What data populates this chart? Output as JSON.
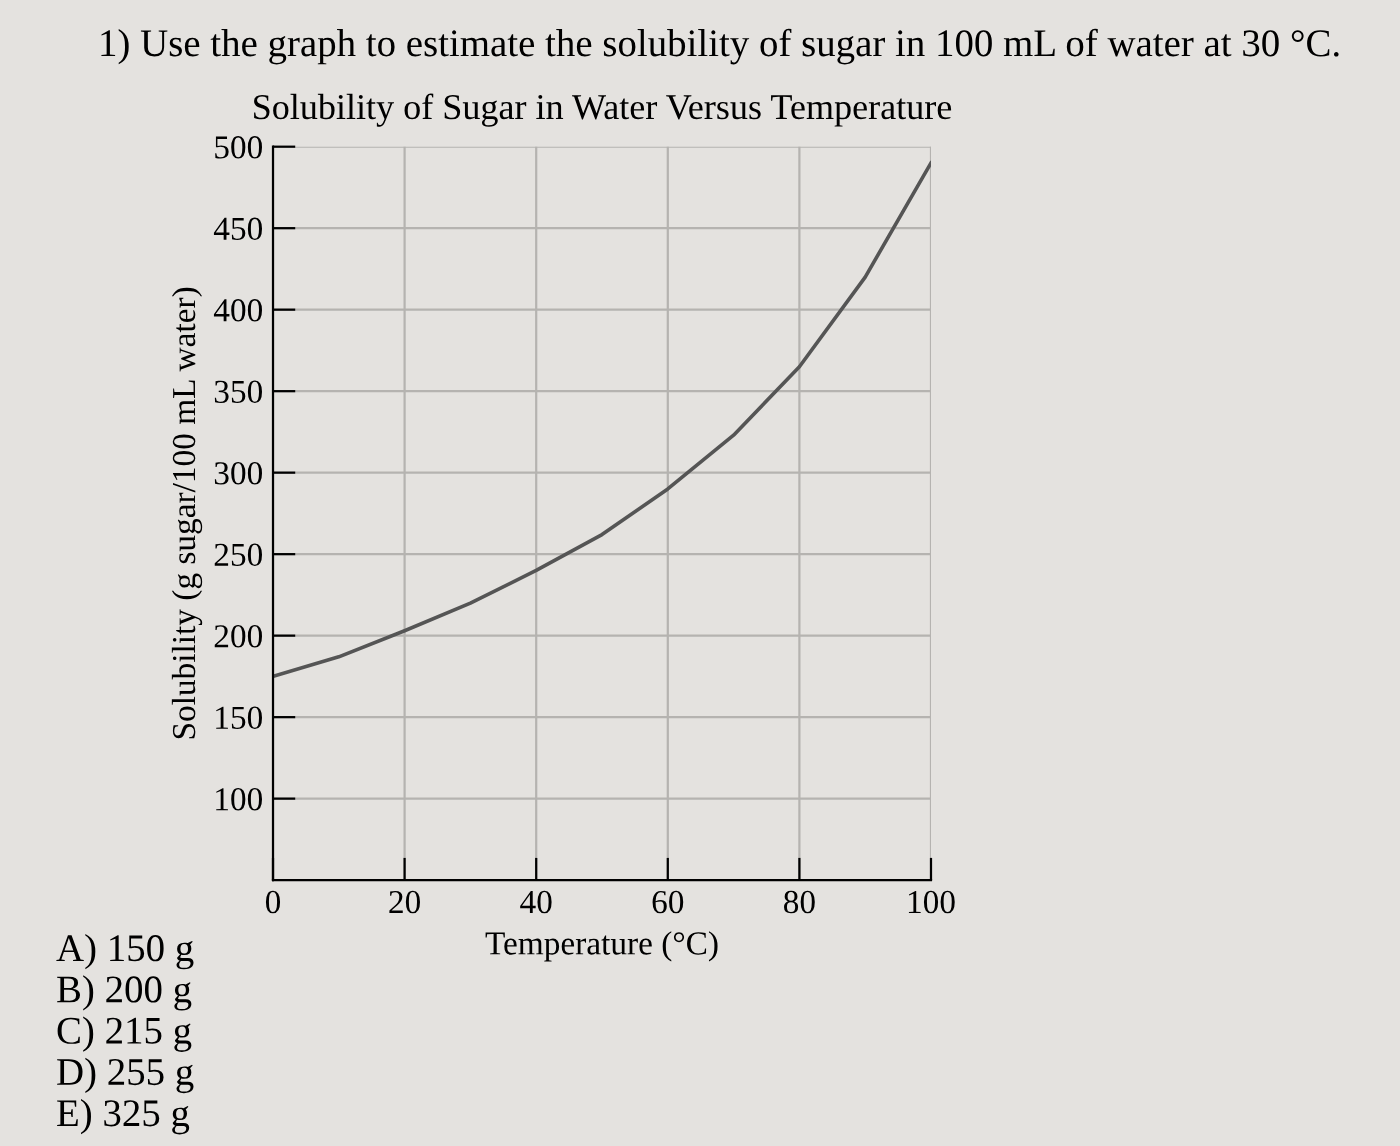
{
  "chart_data": {
    "type": "line",
    "title": "Solubility of Sugar in Water Versus Temperature",
    "xlabel": "Temperature (°C)",
    "ylabel": "Solubility (g sugar/100 mL water)",
    "x": [
      0,
      10,
      20,
      30,
      40,
      50,
      60,
      70,
      80,
      90,
      100
    ],
    "series": [
      {
        "color": "#555555",
        "values": [
          175,
          187,
          203,
          220,
          240,
          262,
          290,
          323,
          365,
          420,
          490
        ]
      }
    ],
    "xlim": [
      0,
      100
    ],
    "xticks": [
      0,
      20,
      40,
      60,
      80,
      100
    ],
    "ylim": [
      50,
      500
    ],
    "yticks": [
      100,
      150,
      200,
      250,
      300,
      350,
      400,
      450,
      500
    ],
    "grid": true,
    "legend": false,
    "marker": "none",
    "line_style": "solid",
    "annotations": [
      "1) Use the graph to estimate the solubility of sugar in 100 mL of water at 30 °C.",
      "A) 150 g",
      "B) 200 g",
      "C) 215 g",
      "D) 255 g",
      "E) 325 g"
    ]
  }
}
